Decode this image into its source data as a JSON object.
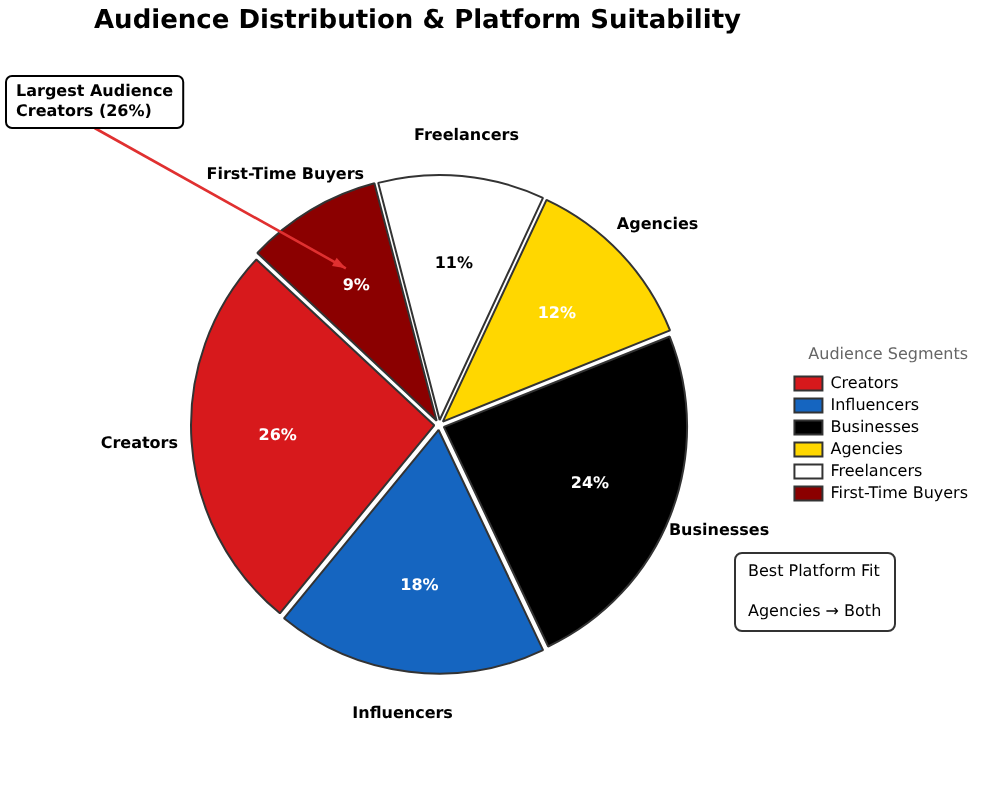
{
  "chart_data": {
    "type": "pie",
    "title": "Audience Distribution & Platform Suitability",
    "categories": [
      "Creators",
      "Influencers",
      "Businesses",
      "Agencies",
      "Freelancers",
      "First-Time Buyers"
    ],
    "values": [
      26,
      18,
      24,
      12,
      11,
      9
    ],
    "colors": [
      "#d7191c",
      "#1565c0",
      "#000000",
      "#ffd700",
      "#ffffff",
      "#8b0000"
    ],
    "value_labels": [
      "26%",
      "18%",
      "24%",
      "12%",
      "11%",
      "9%"
    ],
    "legend": "right",
    "legend_title": "Audience Segments",
    "annotations": [
      "Largest Audience\nCreators (26%)",
      "Best Platform Fit\n\nAgencies → Both"
    ]
  }
}
